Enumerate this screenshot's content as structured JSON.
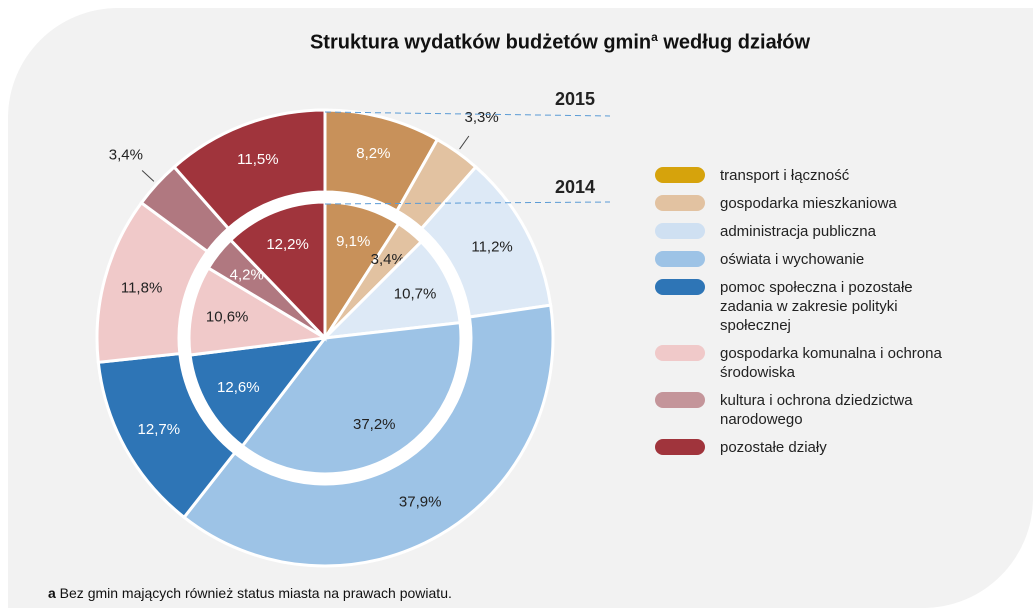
{
  "chart_data": {
    "type": "donut",
    "title": {
      "main": "Struktura wydatków budżetów gmin",
      "sup": "a",
      "rest": " według działów"
    },
    "categories": [
      "transport i łączność",
      "gospodarka mieszkaniowa",
      "administracja publiczna",
      "oświata i wychowanie",
      "pomoc społeczna i pozostałe zadania w zakresie polityki społecznej",
      "gospodarka komunalna i ochrona środowiska",
      "kultura i ochrona dziedzictwa narodowego",
      "pozostałe działy"
    ],
    "colors": [
      "#c8915a",
      "#e2c2a1",
      "#dde9f6",
      "#9dc3e6",
      "#2e75b6",
      "#f0c9c9",
      "#b07880",
      "#a0343c"
    ],
    "legend_colors": [
      "#d6a30c",
      "#e2c2a1",
      "#cfe0f2",
      "#9dc3e6",
      "#2e75b6",
      "#f0c9c9",
      "#c4959a",
      "#a0343c"
    ],
    "series": [
      {
        "name": "2015",
        "values": [
          8.2,
          3.3,
          11.2,
          37.9,
          12.7,
          11.8,
          3.4,
          11.5
        ],
        "value_labels": [
          "8,2%",
          "3,3%",
          "11,2%",
          "37,9%",
          "12,7%",
          "11,8%",
          "3,4%",
          "11,5%"
        ]
      },
      {
        "name": "2014",
        "values": [
          9.1,
          3.4,
          10.7,
          37.2,
          12.6,
          10.6,
          4.2,
          12.2
        ],
        "value_labels": [
          "9,1%",
          "3,4%",
          "10,7%",
          "37,2%",
          "12,6%",
          "10,6%",
          "4,2%",
          "12,2%"
        ]
      }
    ],
    "footnote": {
      "mark": "a",
      "text": " Bez gmin mających również status miasta na prawach powiatu."
    }
  }
}
